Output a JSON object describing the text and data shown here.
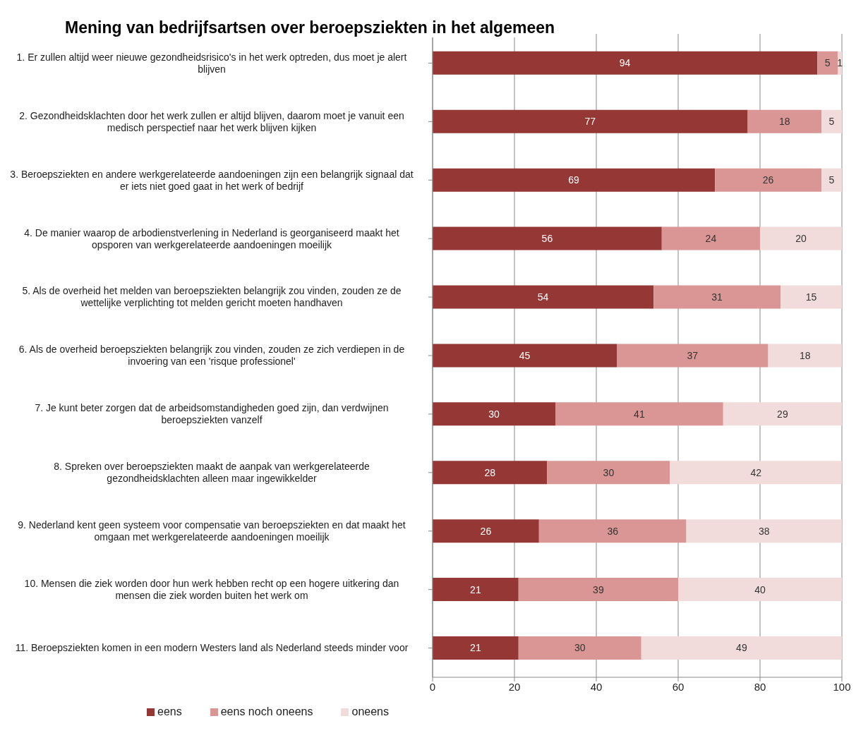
{
  "chart_data": {
    "type": "bar",
    "orientation": "horizontal",
    "stacked": true,
    "title": "Mening van bedrijfsartsen over beroepsziekten in het algemeen",
    "categories": [
      "1. Er zullen altijd weer nieuwe gezondheidsrisico's in het werk optreden, dus moet je alert blijven",
      "2. Gezondheidsklachten door het werk zullen er altijd blijven, daarom moet je vanuit een medisch perspectief naar het werk blijven kijken",
      "3. Beroepsziekten en andere werkgerelateerde aandoeningen zijn een belangrijk signaal dat er iets niet goed gaat in het werk of bedrijf",
      "4. De manier waarop de arbodienstverlening in Nederland is georganiseerd maakt het opsporen van werkgerelateerde aandoeningen moeilijk",
      "5. Als de overheid het melden van beroepsziekten belangrijk zou vinden, zouden ze de wettelijke verplichting tot melden gericht moeten handhaven",
      "6. Als de overheid beroepsziekten belangrijk zou vinden, zouden ze zich verdiepen in de invoering van een 'risque professionel'",
      "7. Je kunt beter zorgen dat de arbeidsomstandigheden goed zijn, dan verdwijnen beroepsziekten vanzelf",
      "8. Spreken over beroepsziekten maakt de aanpak van werkgerelateerde gezondheidsklachten alleen maar ingewikkelder",
      "9. Nederland kent geen systeem voor compensatie van beroepsziekten en dat maakt het omgaan met werkgerelateerde aandoeningen moeilijk",
      "10. Mensen die ziek worden door hun werk hebben recht op een hogere uitkering dan mensen die ziek worden buiten het werk om",
      "11. Beroepsziekten komen in een modern Westers land als Nederland steeds minder voor"
    ],
    "series": [
      {
        "name": "eens",
        "color": "#953735",
        "values": [
          94,
          77,
          69,
          56,
          54,
          45,
          30,
          28,
          26,
          21,
          21
        ]
      },
      {
        "name": "eens noch oneens",
        "color": "#d99694",
        "values": [
          5,
          18,
          26,
          24,
          31,
          37,
          41,
          30,
          36,
          39,
          30
        ]
      },
      {
        "name": "oneens",
        "color": "#f2dcdb",
        "values": [
          1,
          5,
          5,
          20,
          15,
          18,
          29,
          42,
          38,
          40,
          49
        ]
      }
    ],
    "xlim": [
      0,
      100
    ],
    "xticks": [
      0,
      20,
      40,
      60,
      80,
      100
    ],
    "grid": "x",
    "legend": "bottom left",
    "data_labels": true
  }
}
